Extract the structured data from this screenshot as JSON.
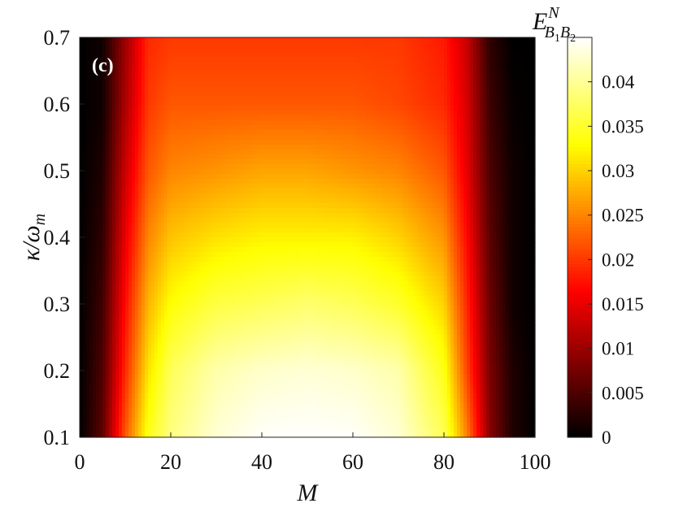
{
  "chart_data": {
    "type": "heatmap",
    "panel_label": "(c)",
    "xlabel": "M",
    "ylabel": "κ/ω",
    "ylabel_sub": "m",
    "colorbar_label": "E",
    "colorbar_label_sup": "N",
    "colorbar_label_sub": "B",
    "colorbar_label_sub_index1": "1",
    "colorbar_label_sub_mid": "B",
    "colorbar_label_sub_index2": "2",
    "xlim": [
      0,
      100
    ],
    "ylim": [
      0.1,
      0.7
    ],
    "x_ticks": [
      "0",
      "20",
      "40",
      "60",
      "80",
      "100"
    ],
    "y_ticks": [
      "0.1",
      "0.2",
      "0.3",
      "0.4",
      "0.5",
      "0.6",
      "0.7"
    ],
    "colorbar_range": [
      0,
      0.045
    ],
    "colorbar_ticks": [
      "0",
      "0.005",
      "0.01",
      "0.015",
      "0.02",
      "0.025",
      "0.03",
      "0.035",
      "0.04"
    ],
    "colormap": "hot",
    "x_grid": [
      0,
      5,
      10,
      15,
      20,
      30,
      40,
      50,
      60,
      70,
      80,
      85,
      90,
      95,
      100
    ],
    "y_grid": [
      0.1,
      0.2,
      0.3,
      0.4,
      0.5,
      0.6,
      0.7
    ],
    "z": [
      [
        0.0,
        0.006,
        0.022,
        0.034,
        0.039,
        0.043,
        0.0448,
        0.045,
        0.0448,
        0.043,
        0.037,
        0.025,
        0.009,
        0.002,
        0.0
      ],
      [
        0.0,
        0.005,
        0.019,
        0.031,
        0.037,
        0.041,
        0.0425,
        0.043,
        0.0425,
        0.041,
        0.034,
        0.021,
        0.008,
        0.002,
        0.0
      ],
      [
        0.0,
        0.004,
        0.017,
        0.028,
        0.033,
        0.036,
        0.037,
        0.038,
        0.037,
        0.035,
        0.03,
        0.019,
        0.007,
        0.001,
        0.0
      ],
      [
        0.0,
        0.003,
        0.015,
        0.025,
        0.029,
        0.031,
        0.032,
        0.032,
        0.032,
        0.03,
        0.026,
        0.017,
        0.006,
        0.001,
        0.0
      ],
      [
        0.0,
        0.002,
        0.013,
        0.022,
        0.025,
        0.026,
        0.027,
        0.027,
        0.026,
        0.025,
        0.022,
        0.015,
        0.005,
        0.001,
        0.0
      ],
      [
        0.0,
        0.001,
        0.011,
        0.02,
        0.022,
        0.022,
        0.022,
        0.022,
        0.022,
        0.021,
        0.019,
        0.014,
        0.004,
        0.0005,
        0.0
      ],
      [
        0.0,
        0.001,
        0.01,
        0.019,
        0.02,
        0.02,
        0.02,
        0.02,
        0.02,
        0.02,
        0.018,
        0.013,
        0.003,
        0.0,
        0.0
      ]
    ]
  }
}
